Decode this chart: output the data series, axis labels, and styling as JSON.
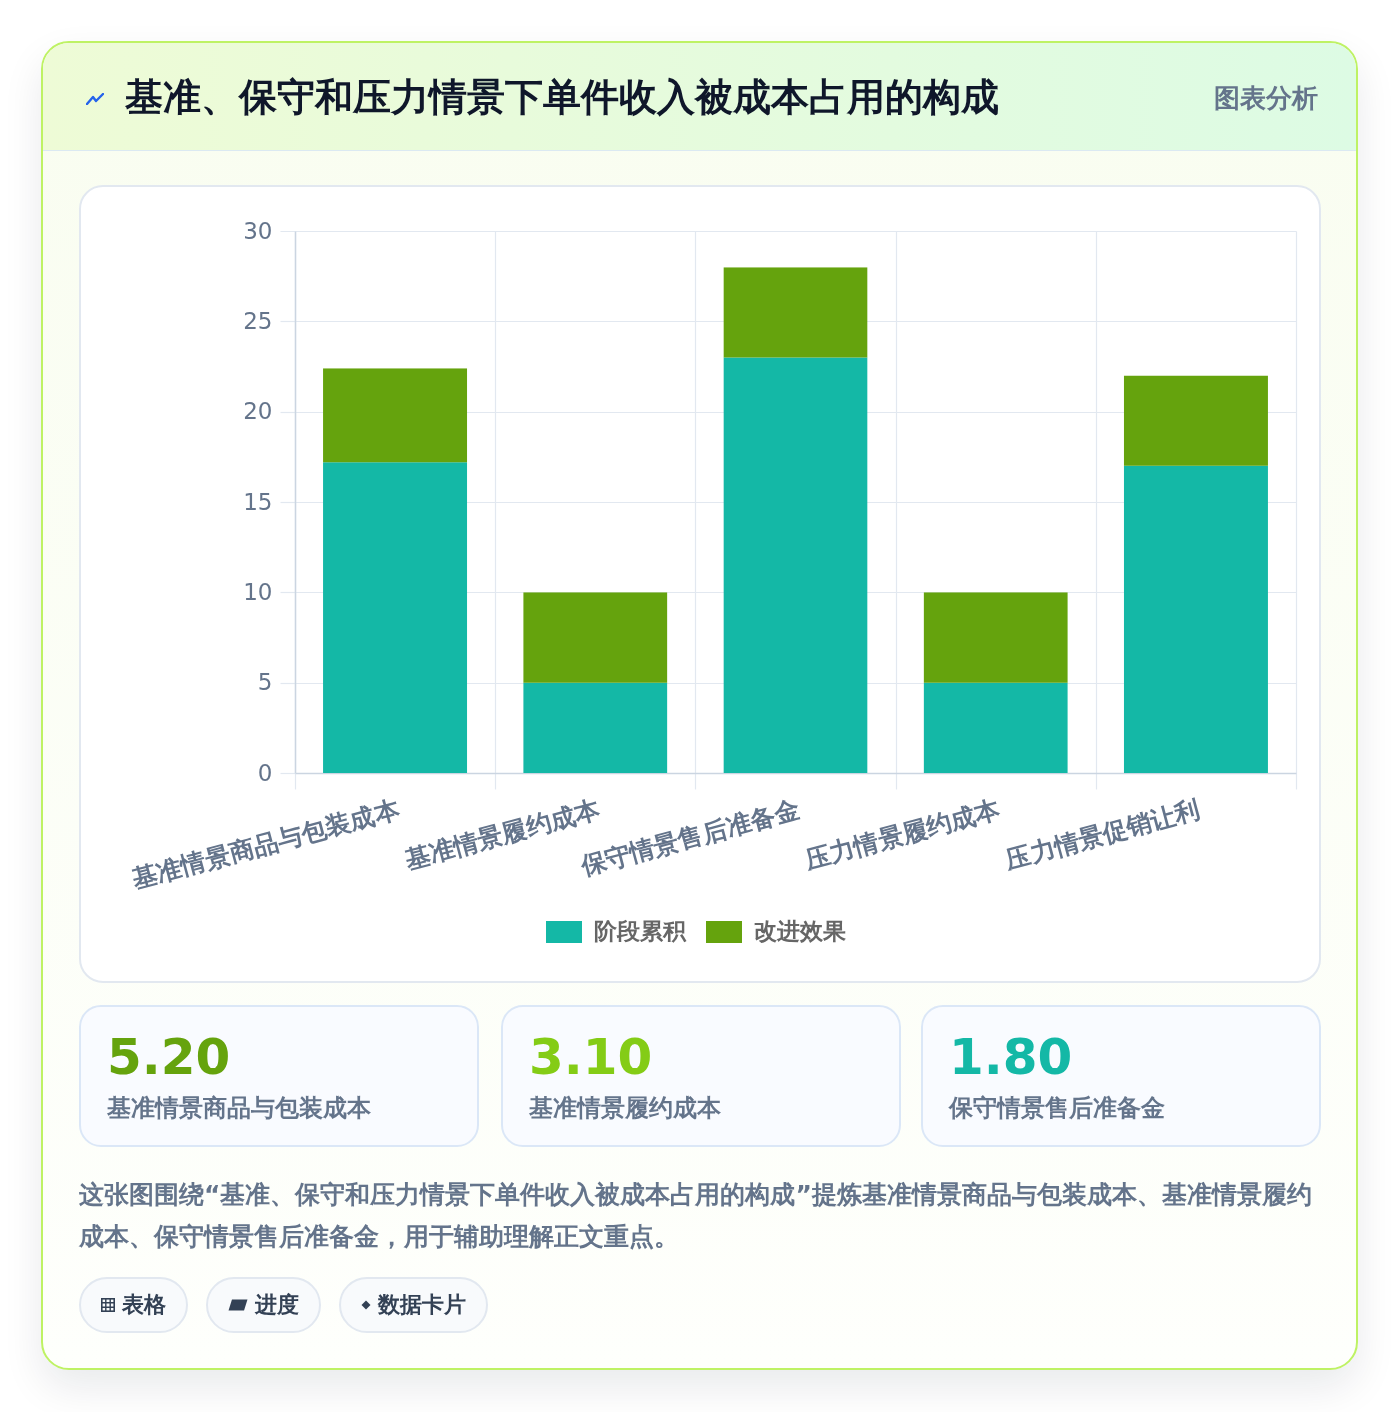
{
  "chart_data": {
    "type": "bar",
    "title": "基准、保守和压力情景下单件收入被成本占用的构成",
    "subtitle": "图表分析",
    "categories": [
      "基准情景商品与包装成本",
      "基准情景履约成本",
      "保守情景售后准备金",
      "压力情景履约成本",
      "压力情景促销让利"
    ],
    "series": [
      {
        "name": "阶段累积",
        "color": "#14b8a6",
        "values": [
          17.2,
          5,
          23,
          5,
          17
        ]
      },
      {
        "name": "改进效果",
        "color": "#65a30d",
        "values": [
          5.2,
          5,
          5,
          5,
          5
        ]
      }
    ],
    "stacked": true,
    "ylim": [
      0,
      30
    ],
    "yticks": [
      0,
      5,
      10,
      15,
      20,
      25,
      30
    ],
    "grid": true,
    "legend": "bottom",
    "annotations": [
      "5.20",
      "基准情景商品与包装成本",
      "3.10",
      "基准情景履约成本",
      "1.80",
      "保守情景售后准备金",
      "这张图围绕“基准、保守和压力情景下单件收入被成本占用的构成”提炼基准情景商品与包装成本、基准情景履约成本、保守情景售后准备金，用于辅助理解正文重点。",
      "表格",
      "进度",
      "数据卡片"
    ]
  }
}
